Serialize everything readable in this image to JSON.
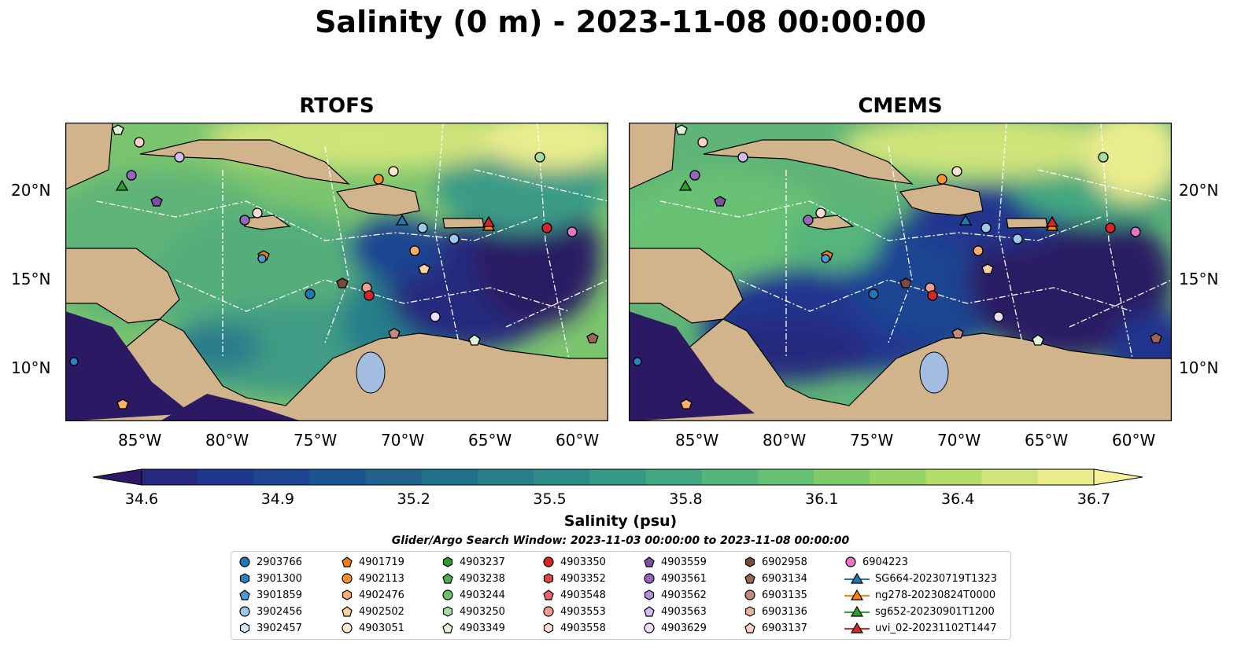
{
  "title": "Salinity (0 m) - 2023-11-08 00:00:00",
  "panels": [
    {
      "title": "RTOFS"
    },
    {
      "title": "CMEMS"
    }
  ],
  "axes": {
    "x_ticks": [
      "85°W",
      "80°W",
      "75°W",
      "70°W",
      "65°W",
      "60°W"
    ],
    "y_ticks": [
      "20°N",
      "15°N",
      "10°N"
    ]
  },
  "colorbar": {
    "ticks": [
      "34.6",
      "34.9",
      "35.2",
      "35.5",
      "35.8",
      "36.1",
      "36.4",
      "36.7"
    ],
    "label": "Salinity (psu)",
    "range": [
      34.6,
      36.7
    ],
    "colors": [
      "#2b1a63",
      "#26297e",
      "#21368e",
      "#1d4592",
      "#1b5590",
      "#1e628d",
      "#22718b",
      "#277e89",
      "#2d8b88",
      "#359a85",
      "#42a780",
      "#54b57a",
      "#67c173",
      "#7fcb6c",
      "#98d366",
      "#b4dc6b",
      "#cfe47a",
      "#e9ec8d",
      "#f7f09a"
    ]
  },
  "search_window": "Glider/Argo Search Window: 2023-11-03 00:00:00 to 2023-11-08 00:00:00",
  "legend": {
    "columns": [
      [
        {
          "label": "2903766",
          "marker": "circle",
          "color": "#1f77b4"
        },
        {
          "label": "3901300",
          "marker": "hexagon",
          "color": "#2a84c0"
        },
        {
          "label": "3901859",
          "marker": "pentagon",
          "color": "#4a9bd8"
        },
        {
          "label": "3902456",
          "marker": "circle",
          "color": "#9cc8ec"
        },
        {
          "label": "3902457",
          "marker": "hexagon",
          "color": "#d2e7f8"
        }
      ],
      [
        {
          "label": "4901719",
          "marker": "pentagon",
          "color": "#f07f1a"
        },
        {
          "label": "4902113",
          "marker": "circle",
          "color": "#f8922e"
        },
        {
          "label": "4902476",
          "marker": "hexagon",
          "color": "#fbae6c"
        },
        {
          "label": "4902502",
          "marker": "pentagon",
          "color": "#fdd0a2"
        },
        {
          "label": "4903051",
          "marker": "circle",
          "color": "#fde6cc"
        }
      ],
      [
        {
          "label": "4903237",
          "marker": "hexagon",
          "color": "#2e9a38"
        },
        {
          "label": "4903238",
          "marker": "pentagon",
          "color": "#4caf50"
        },
        {
          "label": "4903244",
          "marker": "circle",
          "color": "#6cc066"
        },
        {
          "label": "4903250",
          "marker": "hexagon",
          "color": "#a6dca0"
        },
        {
          "label": "4903349",
          "marker": "pentagon",
          "color": "#def3d7"
        }
      ],
      [
        {
          "label": "4903350",
          "marker": "circle",
          "color": "#d62728"
        },
        {
          "label": "4903352",
          "marker": "hexagon",
          "color": "#e04646"
        },
        {
          "label": "4903548",
          "marker": "pentagon",
          "color": "#e8656a"
        },
        {
          "label": "4903553",
          "marker": "circle",
          "color": "#f29c92"
        },
        {
          "label": "4903558",
          "marker": "hexagon",
          "color": "#fcdcd5"
        }
      ],
      [
        {
          "label": "4903559",
          "marker": "pentagon",
          "color": "#7b4fa3"
        },
        {
          "label": "4903561",
          "marker": "circle",
          "color": "#9467bd"
        },
        {
          "label": "4903562",
          "marker": "hexagon",
          "color": "#b294d8"
        },
        {
          "label": "4903563",
          "marker": "pentagon",
          "color": "#d3bdf0"
        },
        {
          "label": "4903629",
          "marker": "circle",
          "color": "#ecdcfa"
        }
      ],
      [
        {
          "label": "6902958",
          "marker": "hexagon",
          "color": "#7a4a3f"
        },
        {
          "label": "6903134",
          "marker": "pentagon",
          "color": "#9a6456"
        },
        {
          "label": "6903135",
          "marker": "circle",
          "color": "#c48a7c"
        },
        {
          "label": "6903136",
          "marker": "hexagon",
          "color": "#e8b3a2"
        },
        {
          "label": "6903137",
          "marker": "pentagon",
          "color": "#fbd2c6"
        }
      ],
      [
        {
          "label": "6904223",
          "marker": "circle",
          "color": "#e377c2"
        },
        {
          "label": "SG664-20230719T1323",
          "marker": "triangle-line",
          "color": "#1f77b4"
        },
        {
          "label": "ng278-20230824T0000",
          "marker": "triangle-line",
          "color": "#ff7f0e"
        },
        {
          "label": "sg652-20230901T1200",
          "marker": "triangle-line",
          "color": "#2ca02c"
        },
        {
          "label": "uvi_02-20231102T1447",
          "marker": "triangle-line",
          "color": "#d62728"
        }
      ]
    ]
  },
  "colors": {
    "land": "#d2b48c",
    "lake": "#a3bde0",
    "deep_low_salinity": "#2b1a63"
  }
}
